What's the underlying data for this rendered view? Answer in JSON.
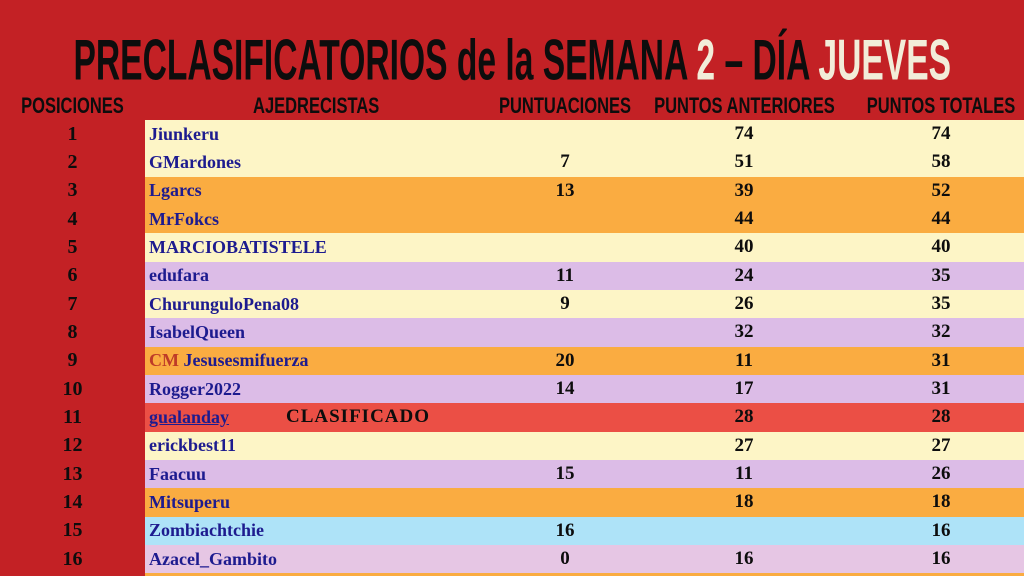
{
  "title": {
    "part1": "PRECLASIFICATORIOS de la SEMANA ",
    "part2": "2",
    "part3": " – DÍA ",
    "part4": "JUEVES"
  },
  "header": {
    "posiciones": "POSICIONES",
    "ajedrecistas": "AJEDRECISTAS",
    "puntuaciones": "PUNTUACIONES",
    "puntos_anteriores": "PUNTOS ANTERIORES",
    "puntos_totales": "PUNTOS TOTALES"
  },
  "colors": {
    "background_red": "#C32125",
    "row_cream": "#FDF5C6",
    "row_orange": "#FAAC41",
    "row_lavender": "#DCBCE7",
    "row_pink": "#E6C6E4",
    "row_tomato": "#EB4F45",
    "row_lightblue": "#AEE3F8",
    "title_ivory": "#F2EDD9",
    "name_navy": "#1D1B8F",
    "cm_red": "#BE3B28",
    "text_black": "#0D0D0D"
  },
  "table": {
    "rows": [
      {
        "pos": "1",
        "prefix": "",
        "name": "Jiunkeru",
        "badge": "",
        "punt": "",
        "ant": "74",
        "tot": "74",
        "bg": "cream",
        "underline": false
      },
      {
        "pos": "2",
        "prefix": "",
        "name": "GMardones",
        "badge": "",
        "punt": "7",
        "ant": "51",
        "tot": "58",
        "bg": "cream",
        "underline": false
      },
      {
        "pos": "3",
        "prefix": "",
        "name": "Lgarcs",
        "badge": "",
        "punt": "13",
        "ant": "39",
        "tot": "52",
        "bg": "orange",
        "underline": false
      },
      {
        "pos": "4",
        "prefix": "",
        "name": "MrFokcs",
        "badge": "",
        "punt": "",
        "ant": "44",
        "tot": "44",
        "bg": "orange",
        "underline": false
      },
      {
        "pos": "5",
        "prefix": "",
        "name": "MARCIOBATISTELE",
        "badge": "",
        "punt": "",
        "ant": "40",
        "tot": "40",
        "bg": "cream",
        "underline": false
      },
      {
        "pos": "6",
        "prefix": "",
        "name": "edufara",
        "badge": "",
        "punt": "11",
        "ant": "24",
        "tot": "35",
        "bg": "lavender",
        "underline": false
      },
      {
        "pos": "7",
        "prefix": "",
        "name": "ChurunguloPena08",
        "badge": "",
        "punt": "9",
        "ant": "26",
        "tot": "35",
        "bg": "cream",
        "underline": false
      },
      {
        "pos": "8",
        "prefix": "",
        "name": "IsabelQueen",
        "badge": "",
        "punt": "",
        "ant": "32",
        "tot": "32",
        "bg": "lavender",
        "underline": false
      },
      {
        "pos": "9",
        "prefix": "CM ",
        "name": "Jesusesmifuerza",
        "badge": "",
        "punt": "20",
        "ant": "11",
        "tot": "31",
        "bg": "orange",
        "underline": false
      },
      {
        "pos": "10",
        "prefix": "",
        "name": "Rogger2022",
        "badge": "",
        "punt": "14",
        "ant": "17",
        "tot": "31",
        "bg": "lavender",
        "underline": false
      },
      {
        "pos": "11",
        "prefix": "",
        "name": "gualanday",
        "badge": "CLASIFICADO",
        "punt": "",
        "ant": "28",
        "tot": "28",
        "bg": "tomato",
        "underline": true
      },
      {
        "pos": "12",
        "prefix": "",
        "name": "erickbest11",
        "badge": "",
        "punt": "",
        "ant": "27",
        "tot": "27",
        "bg": "cream",
        "underline": false
      },
      {
        "pos": "13",
        "prefix": "",
        "name": "Faacuu",
        "badge": "",
        "punt": "15",
        "ant": "11",
        "tot": "26",
        "bg": "lavender",
        "underline": false
      },
      {
        "pos": "14",
        "prefix": "",
        "name": "Mitsuperu",
        "badge": "",
        "punt": "",
        "ant": "18",
        "tot": "18",
        "bg": "orange",
        "underline": false
      },
      {
        "pos": "15",
        "prefix": "",
        "name": "Zombiachtchie",
        "badge": "",
        "punt": "16",
        "ant": "",
        "tot": "16",
        "bg": "lightblue",
        "underline": false
      },
      {
        "pos": "16",
        "prefix": "",
        "name": "Azacel_Gambito",
        "badge": "",
        "punt": "0",
        "ant": "16",
        "tot": "16",
        "bg": "pink",
        "underline": false
      }
    ],
    "next_row_peek_bg": "orange"
  }
}
